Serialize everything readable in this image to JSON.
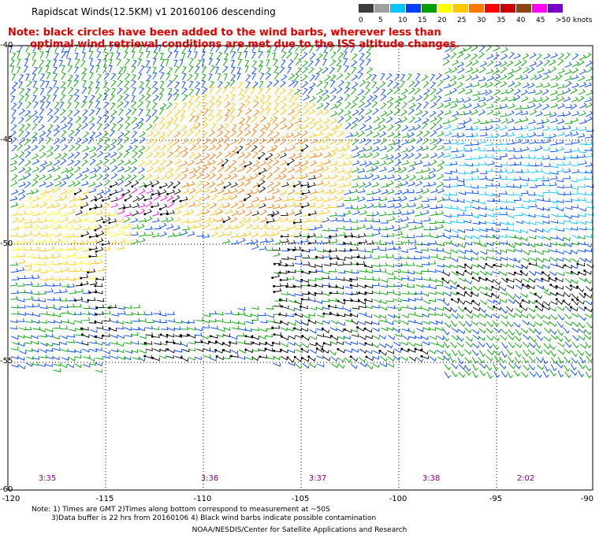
{
  "title": "Rapidscat Winds(12.5KM) v1 20160106 descending",
  "note": {
    "line1": "Note: black circles have been added to the wind barbs, wherever less than",
    "line2": "optimal wind retrieval conditions are met due to the ISS altitude changes."
  },
  "colorbar": {
    "labels": [
      "0",
      "5",
      "10",
      "15",
      "20",
      "25",
      "30",
      "35",
      "40",
      "45",
      ">50 knots"
    ],
    "colors": [
      "#3c3c3c",
      "#a0a0a0",
      "#00c8ff",
      "#0040ff",
      "#00a000",
      "#ffff00",
      "#ffc800",
      "#ff7800",
      "#ff0000",
      "#c80000",
      "#8b4513",
      "#ff00ff",
      "#7800c8"
    ]
  },
  "axes": {
    "lat_labels": [
      "-40",
      "-45",
      "-50",
      "-55",
      "-60"
    ],
    "lon_labels": [
      "-120",
      "-115",
      "-110",
      "-105",
      "-100",
      "-95",
      "-90"
    ]
  },
  "pass_times": [
    "3:35",
    "3:36",
    "3:37",
    "3:38",
    "2:02"
  ],
  "footnote": {
    "line1": "Note: 1) Times are GMT 2)Times along bottom correspond to measurement at ~50S",
    "line2": "3)Data buffer is 22 hrs from 20160106 4) Black wind barbs indicate possible contamination"
  },
  "credit": "NOAA/NESDIS/Center for Satellite Applications and Research"
}
